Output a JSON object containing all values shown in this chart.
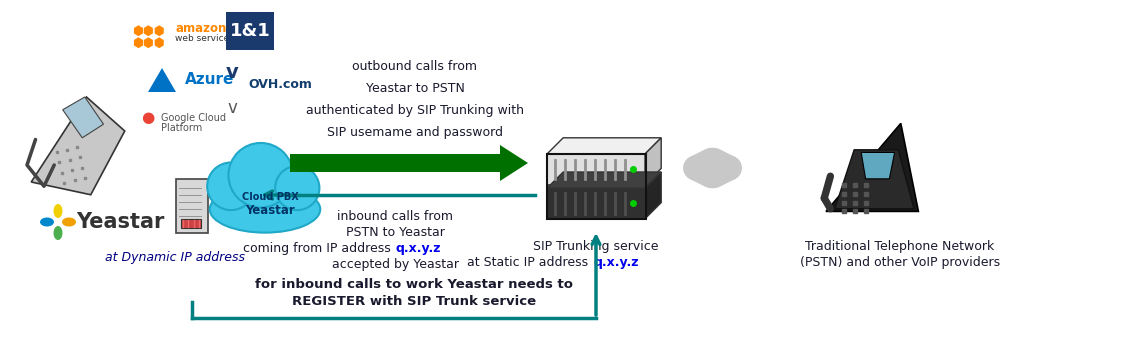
{
  "fig_width": 11.23,
  "fig_height": 3.42,
  "bg_color": "#ffffff",
  "teal_color": "#008080",
  "dark_green": "#007000",
  "gray_color": "#b0b0b0",
  "blue_link": "#0000ee",
  "dark_text": "#1a1a2e",
  "navy_text": "#000080",
  "outbound_text": [
    "outbound calls from",
    "Yeastar to PSTN",
    "authenticated by SIP Trunking with",
    "SIP usemame and password"
  ],
  "inbound_text": [
    "inbound calls from",
    "PSTN to Yeastar",
    "coming from IP address ",
    "accepted by Yeastar"
  ],
  "register_text": [
    "for inbound calls to work Yeastar needs to",
    "REGISTER with SIP Trunk service"
  ],
  "sip_label1": "SIP Trunking service",
  "sip_label2": "at Static IP address ",
  "pstn_label1": "Traditional Telephone Network",
  "pstn_label2": "(PSTN) and other VoIP providers",
  "yeastar_label": "at Dynamic IP address",
  "cloud_text1": "Cloud PBX",
  "cloud_text2": "Yeastar",
  "qxyz": "q.x.y.z",
  "amazon_color": "#FF8800",
  "azure_color": "#0072C6",
  "one1_bg": "#1a3a6e",
  "ovh_color": "#123e6e",
  "yeastar_orange": "#f06400",
  "yeastar_gray": "#555555"
}
